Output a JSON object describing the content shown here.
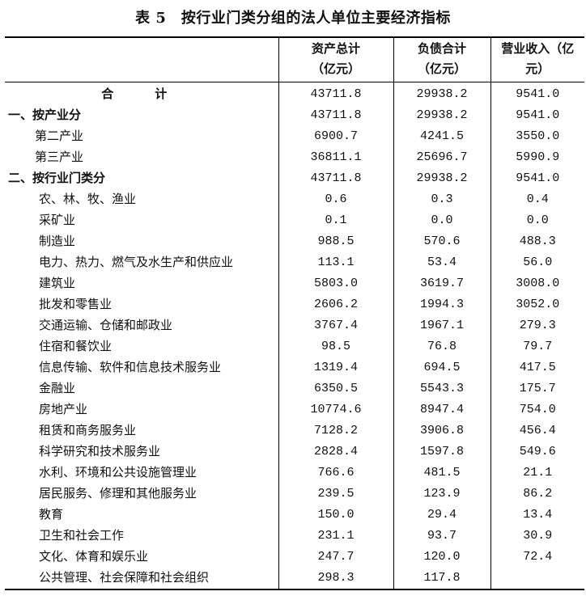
{
  "title": "表 5　按行业门类分组的法人单位主要经济指标",
  "columns": [
    {
      "line1": "资产总计",
      "line2": "（亿元）"
    },
    {
      "line1": "负债合计",
      "line2": "（亿元）"
    },
    {
      "line1": "营业收入（亿",
      "line2": "元）"
    }
  ],
  "rows": [
    {
      "label": "合　计",
      "level": "total",
      "values": [
        "43711.8",
        "29938.2",
        "9541.0"
      ]
    },
    {
      "label": "一、按产业分",
      "level": "lvl0",
      "values": [
        "43711.8",
        "29938.2",
        "9541.0"
      ]
    },
    {
      "label": "第二产业",
      "level": "lvl1",
      "values": [
        "6900.7",
        "4241.5",
        "3550.0"
      ]
    },
    {
      "label": "第三产业",
      "level": "lvl1",
      "values": [
        "36811.1",
        "25696.7",
        "5990.9"
      ]
    },
    {
      "label": "二、按行业门类分",
      "level": "lvl0",
      "values": [
        "43711.8",
        "29938.2",
        "9541.0"
      ]
    },
    {
      "label": "农、林、牧、渔业",
      "level": "lvl2",
      "values": [
        "0.6",
        "0.3",
        "0.4"
      ]
    },
    {
      "label": "采矿业",
      "level": "lvl2",
      "values": [
        "0.1",
        "0.0",
        "0.0"
      ]
    },
    {
      "label": "制造业",
      "level": "lvl2",
      "values": [
        "988.5",
        "570.6",
        "488.3"
      ]
    },
    {
      "label": "电力、热力、燃气及水生产和供应业",
      "level": "lvl2",
      "values": [
        "113.1",
        "53.4",
        "56.0"
      ]
    },
    {
      "label": "建筑业",
      "level": "lvl2",
      "values": [
        "5803.0",
        "3619.7",
        "3008.0"
      ]
    },
    {
      "label": "批发和零售业",
      "level": "lvl2",
      "values": [
        "2606.2",
        "1994.3",
        "3052.0"
      ]
    },
    {
      "label": "交通运输、仓储和邮政业",
      "level": "lvl2",
      "values": [
        "3767.4",
        "1967.1",
        "279.3"
      ]
    },
    {
      "label": "住宿和餐饮业",
      "level": "lvl2",
      "values": [
        "98.5",
        "76.8",
        "79.7"
      ]
    },
    {
      "label": "信息传输、软件和信息技术服务业",
      "level": "lvl2",
      "values": [
        "1319.4",
        "694.5",
        "417.5"
      ]
    },
    {
      "label": "金融业",
      "level": "lvl2",
      "values": [
        "6350.5",
        "5543.3",
        "175.7"
      ]
    },
    {
      "label": "房地产业",
      "level": "lvl2",
      "values": [
        "10774.6",
        "8947.4",
        "754.0"
      ]
    },
    {
      "label": "租赁和商务服务业",
      "level": "lvl2",
      "values": [
        "7128.2",
        "3906.8",
        "456.4"
      ]
    },
    {
      "label": "科学研究和技术服务业",
      "level": "lvl2",
      "values": [
        "2828.4",
        "1597.8",
        "549.6"
      ]
    },
    {
      "label": "水利、环境和公共设施管理业",
      "level": "lvl2",
      "values": [
        "766.6",
        "481.5",
        "21.1"
      ]
    },
    {
      "label": "居民服务、修理和其他服务业",
      "level": "lvl2",
      "values": [
        "239.5",
        "123.9",
        "86.2"
      ]
    },
    {
      "label": "教育",
      "level": "lvl2",
      "values": [
        "150.0",
        "29.4",
        "13.4"
      ]
    },
    {
      "label": "卫生和社会工作",
      "level": "lvl2",
      "values": [
        "231.1",
        "93.7",
        "30.9"
      ]
    },
    {
      "label": "文化、体育和娱乐业",
      "level": "lvl2",
      "values": [
        "247.7",
        "120.0",
        "72.4"
      ]
    },
    {
      "label": "公共管理、社会保障和社会组织",
      "level": "lvl2",
      "values": [
        "298.3",
        "117.8",
        ""
      ]
    }
  ]
}
